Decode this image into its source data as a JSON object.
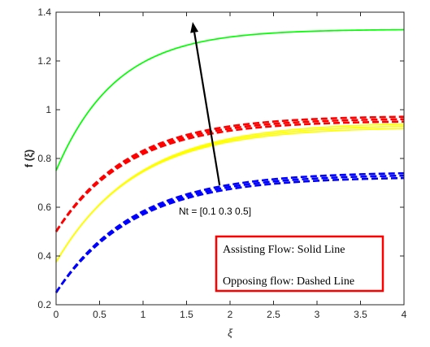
{
  "chart_data": {
    "type": "line",
    "xlabel": "ξ",
    "ylabel": "f  (ξ)",
    "xlim": [
      0,
      4
    ],
    "ylim": [
      0.2,
      1.4
    ],
    "x_ticks": [
      "0",
      "0.5",
      "1",
      "1.5",
      "2",
      "2.5",
      "3",
      "3.5",
      "4"
    ],
    "y_ticks": [
      "0.2",
      "0.4",
      "0.6",
      "0.8",
      "1",
      "1.2",
      "1.4"
    ],
    "grid": false,
    "annotation": {
      "text": "Nt = [0.1  0.3  0.5]",
      "arrow_from": [
        1.88,
        0.69
      ],
      "arrow_to": [
        1.57,
        1.36
      ]
    },
    "legend_box": {
      "line1": "Assisting Flow:  Solid Line",
      "line2": "Opposing flow: Dashed Line",
      "border_color": "#ff0000"
    },
    "series": [
      {
        "color": "#00ff00",
        "style": "solid",
        "f0": 0.75,
        "finf": 1.33,
        "k": 1.45
      },
      {
        "color": "#ffff00",
        "style": "solid",
        "f0": 0.375,
        "finf": 0.94,
        "k": 1.08
      },
      {
        "color": "#ffff00",
        "style": "solid",
        "f0": 0.375,
        "finf": 0.93,
        "k": 1.1
      },
      {
        "color": "#ffff00",
        "style": "solid",
        "f0": 0.375,
        "finf": 0.95,
        "k": 1.06
      },
      {
        "color": "#ff0000",
        "style": "dashed",
        "f0": 0.5,
        "finf": 0.975,
        "k": 1.2
      },
      {
        "color": "#ff0000",
        "style": "dashed",
        "f0": 0.5,
        "finf": 0.965,
        "k": 1.2
      },
      {
        "color": "#ff0000",
        "style": "dashed",
        "f0": 0.5,
        "finf": 0.955,
        "k": 1.2
      },
      {
        "color": "#0000ff",
        "style": "dashed",
        "f0": 0.25,
        "finf": 0.745,
        "k": 1.12
      },
      {
        "color": "#0000ff",
        "style": "dashed",
        "f0": 0.25,
        "finf": 0.735,
        "k": 1.12
      },
      {
        "color": "#0000ff",
        "style": "dashed",
        "f0": 0.25,
        "finf": 0.725,
        "k": 1.12
      }
    ]
  }
}
